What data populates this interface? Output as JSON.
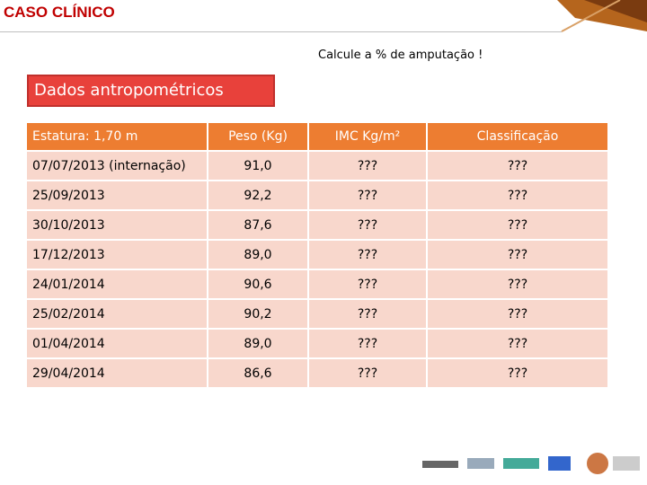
{
  "header": {
    "title": "CASO CLÍNICO"
  },
  "instruction": "Calcule a % de amputação !",
  "section_label": "Dados antropométricos",
  "table": {
    "header": [
      "Estatura: 1,70 m",
      "Peso (Kg)",
      "IMC Kg/m²",
      "Classificação"
    ],
    "rows": [
      [
        "07/07/2013 (internação)",
        "91,0",
        "???",
        "???"
      ],
      [
        "25/09/2013",
        "92,2",
        "???",
        "???"
      ],
      [
        "30/10/2013",
        "87,6",
        "???",
        "???"
      ],
      [
        "17/12/2013",
        "89,0",
        "???",
        "???"
      ],
      [
        "24/01/2014",
        "90,6",
        "???",
        "???"
      ],
      [
        "25/02/2014",
        "90,2",
        "???",
        "???"
      ],
      [
        "01/04/2014",
        "89,0",
        "???",
        "???"
      ],
      [
        "29/04/2014",
        "86,6",
        "???",
        "???"
      ]
    ]
  }
}
